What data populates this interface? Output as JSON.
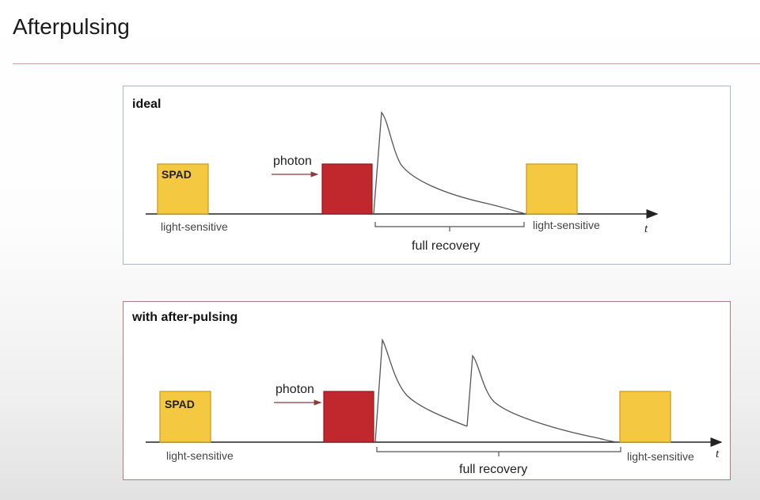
{
  "slide": {
    "title": "Afterpulsing"
  },
  "panels": {
    "ideal": {
      "heading": "ideal",
      "spad_label": "SPAD",
      "photon_label": "photon",
      "left_state": "light-sensitive",
      "right_state": "light-sensitive",
      "recovery_label": "full recovery",
      "axis_label": "t"
    },
    "after": {
      "heading": "with after-pulsing",
      "spad_label": "SPAD",
      "photon_label": "photon",
      "left_state": "light-sensitive",
      "right_state": "light-sensitive",
      "recovery_label": "full recovery",
      "axis_label": "t"
    }
  },
  "colors": {
    "sensitive_fill": "#f5c842",
    "sensitive_stroke": "#c99a18",
    "detect_fill": "#c0282d",
    "detect_stroke": "#8e1a1e",
    "photon_arrow": "#8b3a3a",
    "axis": "#222222",
    "pulse": "#555555"
  }
}
